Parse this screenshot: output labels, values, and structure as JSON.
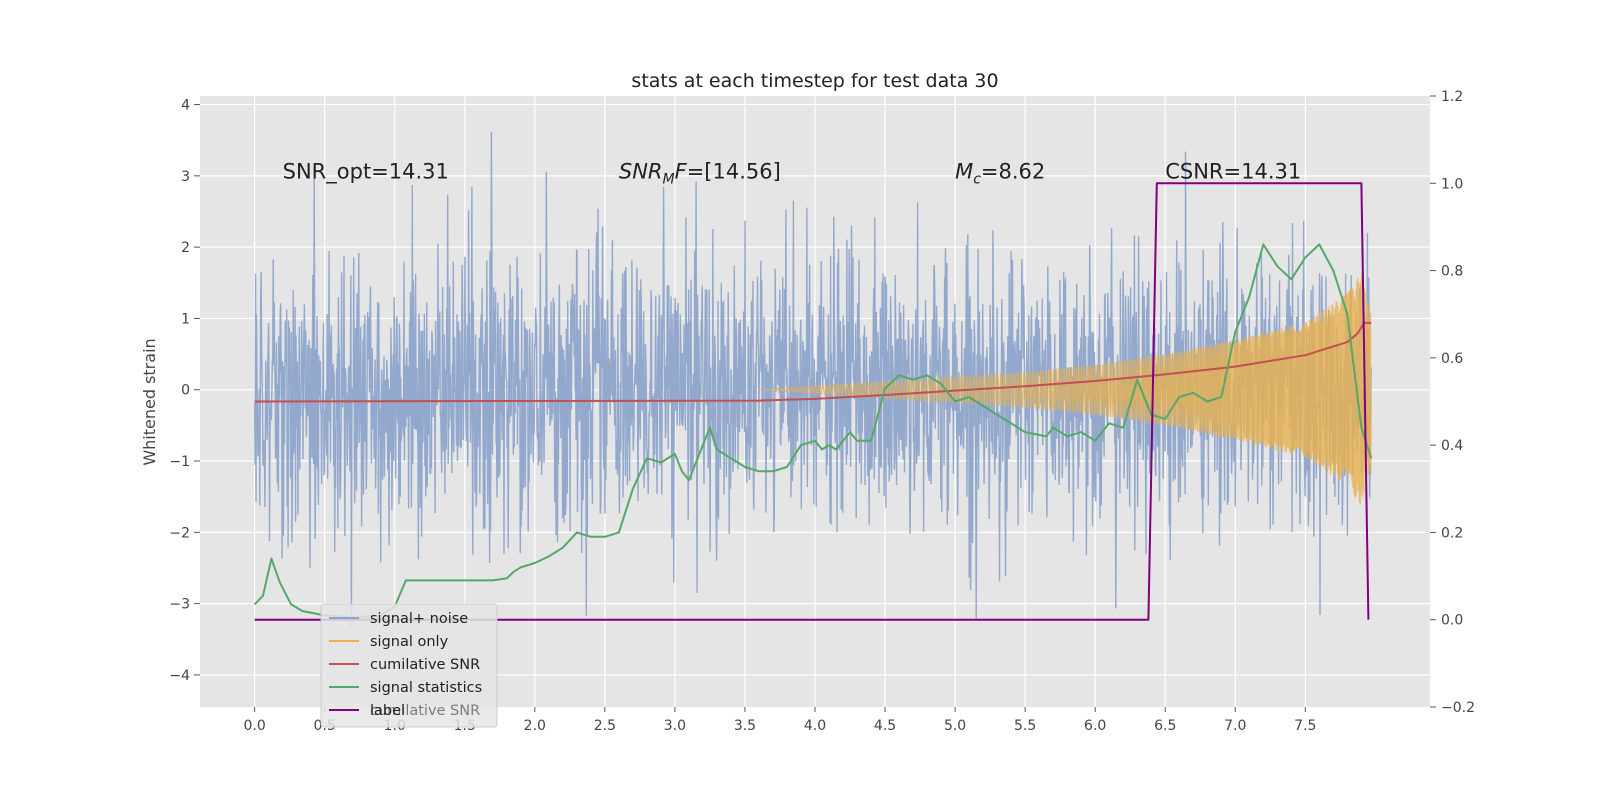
{
  "chart_data": {
    "type": "line",
    "title": "stats at each timestep for test data 30",
    "xlabel": "",
    "ylabel": "Whitened strain",
    "y2label": "",
    "xlim": [
      -0.39,
      8.39
    ],
    "ylim": [
      -4.45,
      4.12
    ],
    "y2lim": [
      -0.2,
      1.2
    ],
    "x_ticks": [
      "0.0",
      "0.5",
      "1.0",
      "1.5",
      "2.0",
      "2.5",
      "3.0",
      "3.5",
      "4.0",
      "4.5",
      "5.0",
      "5.5",
      "6.0",
      "6.5",
      "7.0",
      "7.5"
    ],
    "y_ticks": [
      "−4",
      "−3",
      "−2",
      "−1",
      "0",
      "1",
      "2",
      "3",
      "4"
    ],
    "y2_ticks": [
      "−0.2",
      "0.0",
      "0.2",
      "0.4",
      "0.6",
      "0.8",
      "1.0",
      "1.2"
    ],
    "grid": true,
    "legend_position": "lower-left",
    "colors": {
      "signal_noise": "#8ea4cb",
      "signal_only": "#e8b04e",
      "cumulative_snr": "#c44e52",
      "signal_statistics": "#55a868",
      "label": "#800080",
      "background": "#e5e5e5",
      "grid": "#ffffff"
    },
    "annotations": [
      {
        "id": "snr-opt",
        "text": "SNR_opt=14.31",
        "x": 0.2,
        "y": 2.96
      },
      {
        "id": "snr-mf",
        "base": "SNR",
        "sub": "M",
        "after": "F=[14.56]",
        "x": 2.6,
        "y": 2.96
      },
      {
        "id": "chirp-mass",
        "base": "M",
        "sub": "c",
        "after": "=8.62",
        "x": 5.0,
        "y": 2.96
      },
      {
        "id": "csnr",
        "text": "CSNR=14.31",
        "x": 6.5,
        "y": 2.96
      }
    ],
    "series": [
      {
        "name": "signal+ noise",
        "axis": "left",
        "kind": "noise",
        "x_range": [
          0.0,
          7.97
        ],
        "envelope_typical": [
          -2.0,
          2.0
        ],
        "peaks_max": 3.75,
        "peaks_min": -4.0
      },
      {
        "name": "signal only",
        "axis": "left",
        "kind": "chirp",
        "x_range": [
          3.6,
          7.97
        ],
        "amplitude_envelope": {
          "x": [
            3.6,
            4.5,
            5.5,
            6.0,
            6.5,
            7.0,
            7.5,
            7.8,
            7.9,
            7.95
          ],
          "y": [
            0.0,
            0.12,
            0.25,
            0.35,
            0.5,
            0.7,
            0.95,
            1.35,
            1.65,
            1.2
          ]
        }
      },
      {
        "name": "cumilative SNR",
        "axis": "right",
        "x": [
          0.0,
          3.6,
          4.0,
          4.5,
          5.0,
          5.5,
          6.0,
          6.5,
          7.0,
          7.5,
          7.8,
          7.87,
          7.92,
          7.97
        ],
        "y": [
          0.5,
          0.502,
          0.506,
          0.515,
          0.525,
          0.535,
          0.547,
          0.562,
          0.58,
          0.606,
          0.636,
          0.655,
          0.68,
          0.68
        ]
      },
      {
        "name": "signal statistics",
        "axis": "right",
        "x": [
          0.0,
          0.06,
          0.12,
          0.18,
          0.26,
          0.34,
          0.5,
          0.7,
          0.9,
          1.0,
          1.08,
          1.3,
          1.5,
          1.7,
          1.8,
          1.85,
          1.9,
          2.0,
          2.1,
          2.2,
          2.3,
          2.4,
          2.5,
          2.6,
          2.7,
          2.8,
          2.9,
          3.0,
          3.05,
          3.1,
          3.2,
          3.25,
          3.3,
          3.4,
          3.5,
          3.6,
          3.7,
          3.8,
          3.9,
          4.0,
          4.05,
          4.1,
          4.15,
          4.25,
          4.3,
          4.4,
          4.5,
          4.6,
          4.7,
          4.8,
          4.9,
          5.0,
          5.1,
          5.2,
          5.3,
          5.4,
          5.5,
          5.65,
          5.7,
          5.8,
          5.9,
          6.0,
          6.1,
          6.2,
          6.3,
          6.4,
          6.5,
          6.6,
          6.7,
          6.8,
          6.9,
          7.0,
          7.1,
          7.2,
          7.3,
          7.4,
          7.5,
          7.6,
          7.7,
          7.8,
          7.9,
          7.97
        ],
        "y": [
          0.035,
          0.055,
          0.14,
          0.085,
          0.035,
          0.02,
          0.01,
          0.005,
          0.01,
          0.03,
          0.09,
          0.09,
          0.09,
          0.09,
          0.095,
          0.11,
          0.12,
          0.13,
          0.145,
          0.165,
          0.2,
          0.19,
          0.19,
          0.2,
          0.3,
          0.37,
          0.36,
          0.38,
          0.34,
          0.32,
          0.4,
          0.44,
          0.39,
          0.37,
          0.35,
          0.34,
          0.34,
          0.35,
          0.4,
          0.41,
          0.39,
          0.4,
          0.39,
          0.43,
          0.41,
          0.41,
          0.53,
          0.56,
          0.55,
          0.56,
          0.54,
          0.5,
          0.51,
          0.49,
          0.47,
          0.45,
          0.43,
          0.42,
          0.44,
          0.42,
          0.43,
          0.41,
          0.45,
          0.44,
          0.55,
          0.47,
          0.46,
          0.51,
          0.52,
          0.5,
          0.51,
          0.66,
          0.74,
          0.86,
          0.81,
          0.78,
          0.83,
          0.86,
          0.8,
          0.7,
          0.44,
          0.37
        ]
      },
      {
        "name": "label",
        "axis": "right",
        "x": [
          0.0,
          6.38,
          6.44,
          7.9,
          7.95
        ],
        "y": [
          0.0,
          0.0,
          1.0,
          1.0,
          0.0
        ]
      }
    ],
    "legend": [
      "signal+ noise",
      "signal only",
      "cumilative SNR",
      "signal statistics",
      "label"
    ],
    "legend_overlap_text": "cumilative SNR"
  }
}
